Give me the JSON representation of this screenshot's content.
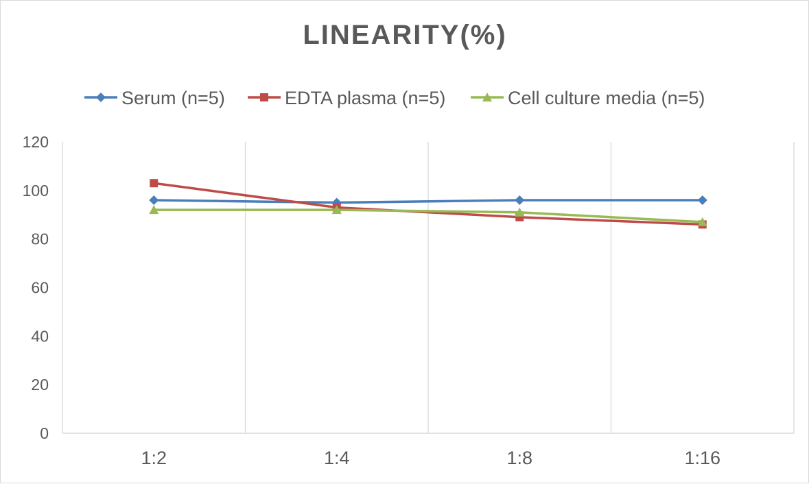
{
  "chart_data": {
    "type": "line",
    "title": "LINEARITY(%)",
    "xlabel": "",
    "ylabel": "",
    "categories": [
      "1:2",
      "1:4",
      "1:8",
      "1:16"
    ],
    "ylim": [
      0,
      120
    ],
    "yticks": [
      0,
      20,
      40,
      60,
      80,
      100,
      120
    ],
    "grid": "vertical",
    "legend": "top",
    "series": [
      {
        "name": "Serum (n=5)",
        "values": [
          96,
          95,
          96,
          96
        ],
        "color": "#4a7ebb",
        "marker": "diamond"
      },
      {
        "name": "EDTA plasma (n=5)",
        "values": [
          103,
          93,
          89,
          86
        ],
        "color": "#be4b48",
        "marker": "square"
      },
      {
        "name": "Cell culture media (n=5)",
        "values": [
          92,
          92,
          91,
          87
        ],
        "color": "#98b954",
        "marker": "triangle"
      }
    ]
  }
}
